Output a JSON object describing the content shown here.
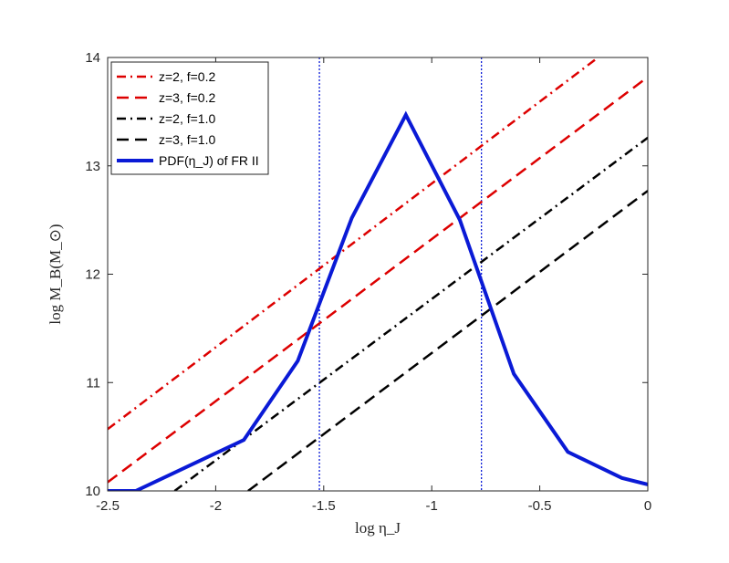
{
  "chart_data": {
    "type": "line",
    "title": "",
    "xlabel": "log η_J",
    "ylabel": "log M_B(M_⊙)",
    "xlim": [
      -2.5,
      0
    ],
    "ylim": [
      10,
      14
    ],
    "xticks": [
      -2.5,
      -2,
      -1.5,
      -1,
      -0.5,
      0
    ],
    "xtick_labels": [
      "-2.5",
      "-2",
      "-1.5",
      "-1",
      "-0.5",
      "0"
    ],
    "yticks": [
      10,
      11,
      12,
      13,
      14
    ],
    "ytick_labels": [
      "10",
      "11",
      "12",
      "13",
      "14"
    ],
    "grid": false,
    "legend_position": "top-left",
    "series": [
      {
        "name": "z=2, f=0.2",
        "color": "#dd0000",
        "dash": "dashdot",
        "width": 2.5,
        "x": [
          -2.5,
          -0.23
        ],
        "y": [
          10.57,
          14.0
        ]
      },
      {
        "name": "z=3, f=0.2",
        "color": "#dd0000",
        "dash": "dashed",
        "width": 2.5,
        "x": [
          -2.5,
          0
        ],
        "y": [
          10.08,
          13.82
        ]
      },
      {
        "name": "z=2, f=1.0",
        "color": "#000000",
        "dash": "dashdot",
        "width": 2.5,
        "x": [
          -2.19,
          0
        ],
        "y": [
          10.0,
          13.26
        ]
      },
      {
        "name": "z=3, f=1.0",
        "color": "#000000",
        "dash": "dashed",
        "width": 2.5,
        "x": [
          -1.85,
          0
        ],
        "y": [
          10.0,
          12.77
        ]
      },
      {
        "name": "PDF(η_J) of FR II",
        "color": "#0a1ad6",
        "dash": "solid",
        "width": 4,
        "x": [
          -2.5,
          -2.37,
          -1.87,
          -1.62,
          -1.37,
          -1.12,
          -0.87,
          -0.62,
          -0.37,
          -0.12,
          0
        ],
        "y": [
          10.0,
          10.0,
          10.47,
          11.2,
          12.52,
          13.47,
          12.5,
          11.08,
          10.36,
          10.12,
          10.06
        ]
      }
    ],
    "vlines": [
      {
        "x": -1.52,
        "color": "#0a1ad6",
        "dash": "dotted"
      },
      {
        "x": -0.77,
        "color": "#0a1ad6",
        "dash": "dotted"
      }
    ]
  }
}
